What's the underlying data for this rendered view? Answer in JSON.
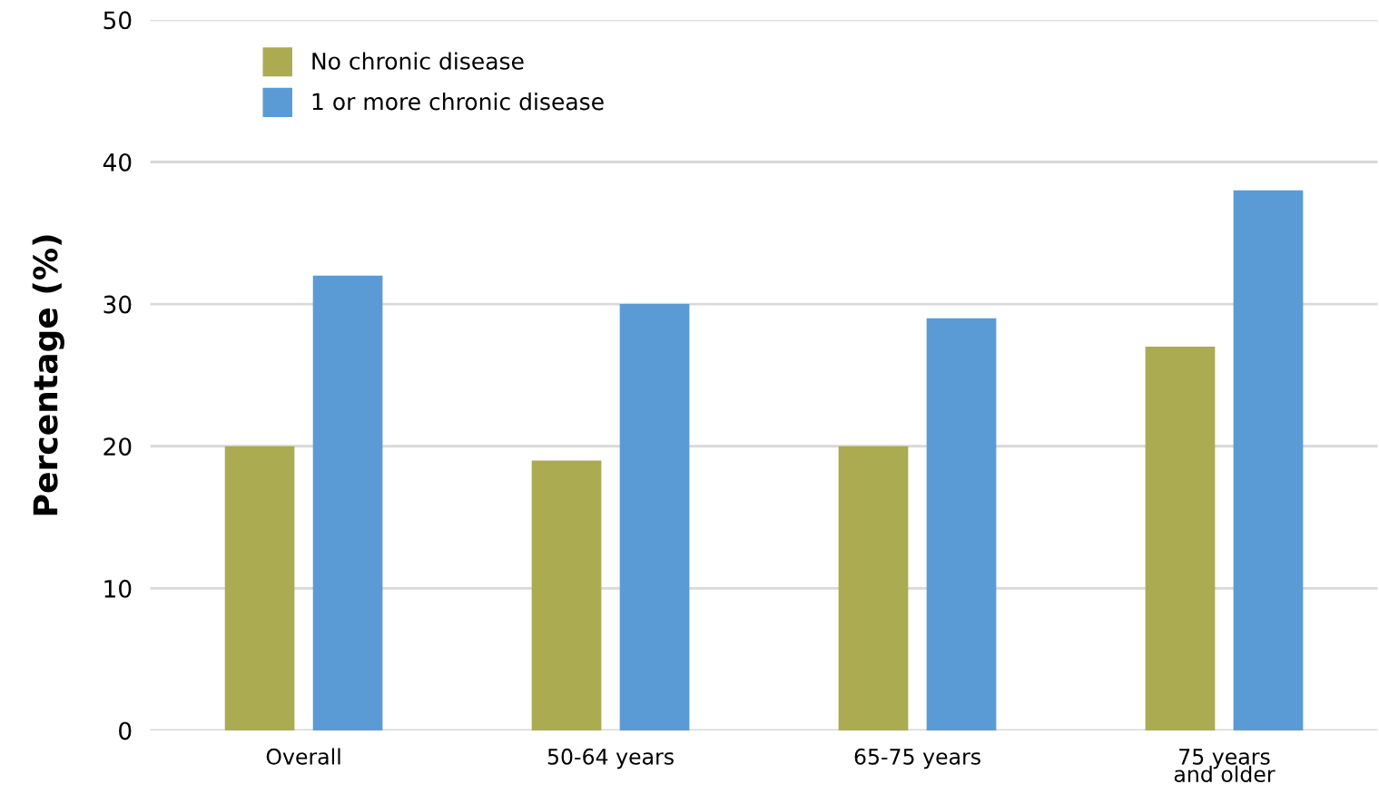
{
  "chart_data": {
    "type": "bar",
    "ylabel": "Percentage (%)",
    "categories": [
      "Overall",
      "50-64 years",
      "65-75 years",
      "75 years\nand older"
    ],
    "series": [
      {
        "name": "No chronic disease",
        "color": "#abab52",
        "values": [
          20,
          19,
          20,
          27
        ]
      },
      {
        "name": "1 or more chronic disease",
        "color": "#5b9bd5",
        "values": [
          32,
          30,
          29,
          38
        ]
      }
    ],
    "ylim": [
      0,
      50
    ],
    "yticks": [
      0,
      10,
      20,
      30,
      40,
      50
    ],
    "grid": "y",
    "legend": "top left"
  }
}
